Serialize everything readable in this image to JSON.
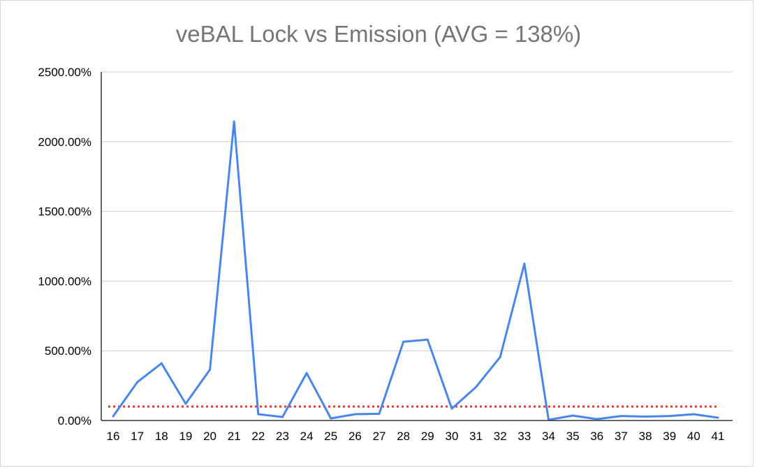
{
  "chart_data": {
    "type": "line",
    "title": "veBAL Lock vs Emission (AVG = 138%)",
    "xlabel": "",
    "ylabel": "",
    "categories": [
      "16",
      "17",
      "18",
      "19",
      "20",
      "21",
      "22",
      "23",
      "24",
      "25",
      "26",
      "27",
      "28",
      "29",
      "30",
      "31",
      "32",
      "33",
      "34",
      "35",
      "36",
      "37",
      "38",
      "39",
      "40",
      "41"
    ],
    "series": [
      {
        "values": [
          30,
          275,
          410,
          120,
          365,
          2145,
          45,
          25,
          340,
          15,
          45,
          48,
          565,
          580,
          85,
          240,
          455,
          1125,
          5,
          35,
          10,
          32,
          28,
          32,
          45,
          20
        ],
        "color": "#4a86e8"
      }
    ],
    "reference_line": {
      "value": 100,
      "color": "#e53935",
      "style": "dotted"
    },
    "ylim": [
      0,
      2500
    ],
    "yticks": [
      0,
      500,
      1000,
      1500,
      2000,
      2500
    ],
    "ytick_labels": [
      "0.00%",
      "500.00%",
      "1000.00%",
      "1500.00%",
      "2000.00%",
      "2500.00%"
    ],
    "grid": true,
    "legend": "none"
  }
}
